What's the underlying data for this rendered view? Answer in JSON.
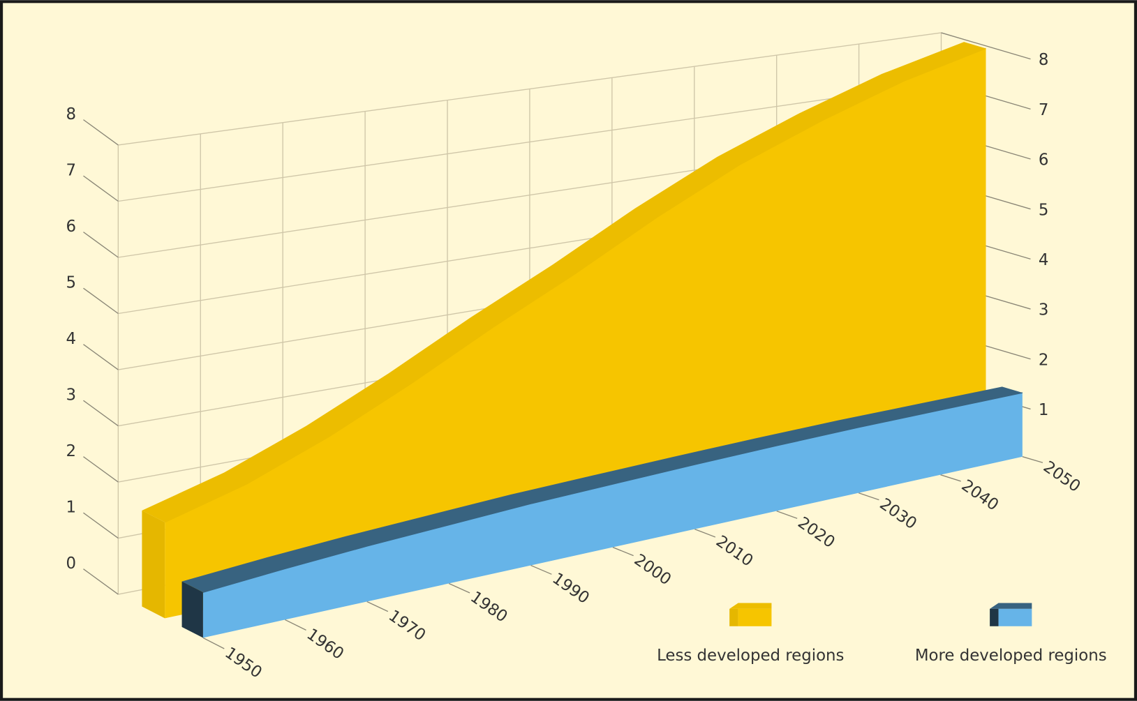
{
  "chart_data": {
    "type": "area",
    "x": [
      1950,
      1960,
      1970,
      1980,
      1990,
      2000,
      2010,
      2020,
      2030,
      2040,
      2050
    ],
    "xlim": [
      1950,
      2050
    ],
    "xticks": [
      1950,
      1960,
      1970,
      1980,
      1990,
      2000,
      2010,
      2020,
      2030,
      2040,
      2050
    ],
    "ylim": [
      0,
      8
    ],
    "yticks": [
      0,
      1,
      2,
      3,
      4,
      5,
      6,
      7,
      8
    ],
    "y2lim": [
      0,
      8
    ],
    "y2ticks": [
      1,
      2,
      3,
      4,
      5,
      6,
      7,
      8
    ],
    "grid": true,
    "legend": "lower right",
    "series": [
      {
        "name": "Less developed regions",
        "color": "#f6c500",
        "values": [
          1.71,
          2.11,
          2.68,
          3.37,
          4.14,
          4.87,
          5.68,
          6.42,
          7.02,
          7.55,
          7.95
        ]
      },
      {
        "name": "More developed regions",
        "color": "#66b4e8",
        "values": [
          0.81,
          0.92,
          1.01,
          1.08,
          1.15,
          1.19,
          1.23,
          1.26,
          1.28,
          1.28,
          1.28
        ]
      }
    ]
  }
}
